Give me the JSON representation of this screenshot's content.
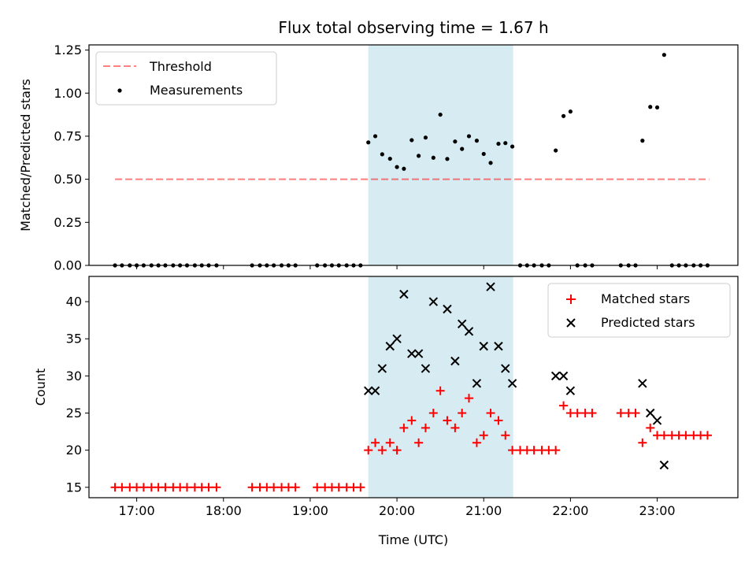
{
  "chart_data": [
    {
      "type": "scatter",
      "title": "Flux total observing time = 1.67 h",
      "ylabel": "Matched/Predicted stars",
      "ylim": [
        0,
        1.28
      ],
      "xlim_hours": [
        16.45,
        23.93
      ],
      "yticks": [
        "0.00",
        "0.25",
        "0.50",
        "0.75",
        "1.00",
        "1.25"
      ],
      "ytick_values": [
        0,
        0.25,
        0.5,
        0.75,
        1.0,
        1.25
      ],
      "highlight_span_hours": [
        19.67,
        21.34
      ],
      "highlight_color": "#add8e6",
      "legend": {
        "placement": "upper left",
        "threshold_label": "Threshold",
        "measurements_label": "Measurements"
      },
      "threshold": {
        "value": 0.5,
        "x_range_hours": [
          16.75,
          23.6
        ],
        "color": "#ff0000"
      },
      "series": [
        {
          "name": "Measurements",
          "color": "#000000",
          "x_hours": [
            16.75,
            16.83,
            16.92,
            17.0,
            17.08,
            17.17,
            17.25,
            17.33,
            17.42,
            17.5,
            17.58,
            17.67,
            17.75,
            17.83,
            17.92,
            18.33,
            18.42,
            18.5,
            18.58,
            18.67,
            18.75,
            18.83,
            19.08,
            19.17,
            19.25,
            19.33,
            19.42,
            19.5,
            19.58,
            19.67,
            19.75,
            19.83,
            19.92,
            20.0,
            20.08,
            20.17,
            20.25,
            20.33,
            20.42,
            20.5,
            20.58,
            20.67,
            20.75,
            20.83,
            20.92,
            21.0,
            21.08,
            21.17,
            21.25,
            21.33,
            21.42,
            21.5,
            21.58,
            21.67,
            21.75,
            21.83,
            21.92,
            22.0,
            22.08,
            22.17,
            22.25,
            22.58,
            22.67,
            22.75,
            22.83,
            22.92,
            23.0,
            23.08,
            23.17,
            23.25,
            23.33,
            23.42,
            23.5,
            23.58
          ],
          "y": [
            0,
            0,
            0,
            0,
            0,
            0,
            0,
            0,
            0,
            0,
            0,
            0,
            0,
            0,
            0,
            0,
            0,
            0,
            0,
            0,
            0,
            0,
            0,
            0,
            0,
            0,
            0,
            0,
            0,
            0.714,
            0.75,
            0.645,
            0.619,
            0.571,
            0.561,
            0.727,
            0.636,
            0.742,
            0.625,
            0.875,
            0.618,
            0.719,
            0.676,
            0.75,
            0.724,
            0.647,
            0.595,
            0.706,
            0.71,
            0.69,
            0,
            0,
            0,
            0,
            0,
            0.667,
            0.867,
            0.893,
            0,
            0,
            0,
            0,
            0,
            0,
            0.724,
            0.92,
            0.917,
            1.222,
            0,
            0,
            0,
            0,
            0,
            0
          ]
        }
      ]
    },
    {
      "type": "scatter",
      "xlabel": "Time (UTC)",
      "ylabel": "Count",
      "ylim": [
        13.6,
        43.4
      ],
      "xlim_hours": [
        16.45,
        23.93
      ],
      "xticks": [
        "17:00",
        "18:00",
        "19:00",
        "20:00",
        "21:00",
        "22:00",
        "23:00"
      ],
      "xtick_hours": [
        17,
        18,
        19,
        20,
        21,
        22,
        23
      ],
      "yticks": [
        "15",
        "20",
        "25",
        "30",
        "35",
        "40"
      ],
      "ytick_values": [
        15,
        20,
        25,
        30,
        35,
        40
      ],
      "highlight_span_hours": [
        19.67,
        21.34
      ],
      "highlight_color": "#add8e6",
      "legend": {
        "placement": "upper right"
      },
      "series": [
        {
          "name": "Matched stars",
          "marker": "plus",
          "color": "#ff0000",
          "x_hours": [
            16.75,
            16.83,
            16.92,
            17.0,
            17.08,
            17.17,
            17.25,
            17.33,
            17.42,
            17.5,
            17.58,
            17.67,
            17.75,
            17.83,
            17.92,
            18.33,
            18.42,
            18.5,
            18.58,
            18.67,
            18.75,
            18.83,
            19.08,
            19.17,
            19.25,
            19.33,
            19.42,
            19.5,
            19.58,
            19.67,
            19.75,
            19.83,
            19.92,
            20.0,
            20.08,
            20.17,
            20.25,
            20.33,
            20.42,
            20.5,
            20.58,
            20.67,
            20.75,
            20.83,
            20.92,
            21.0,
            21.08,
            21.17,
            21.25,
            21.33,
            21.42,
            21.5,
            21.58,
            21.67,
            21.75,
            21.83,
            21.92,
            22.0,
            22.08,
            22.17,
            22.25,
            22.58,
            22.67,
            22.75,
            22.83,
            22.92,
            23.0,
            23.08,
            23.17,
            23.25,
            23.33,
            23.42,
            23.5,
            23.58
          ],
          "y": [
            15,
            15,
            15,
            15,
            15,
            15,
            15,
            15,
            15,
            15,
            15,
            15,
            15,
            15,
            15,
            15,
            15,
            15,
            15,
            15,
            15,
            15,
            15,
            15,
            15,
            15,
            15,
            15,
            15,
            20,
            21,
            20,
            21,
            20,
            23,
            24,
            21,
            23,
            25,
            28,
            24,
            23,
            25,
            27,
            21,
            22,
            25,
            24,
            22,
            20,
            20,
            20,
            20,
            20,
            20,
            20,
            26,
            25,
            25,
            25,
            25,
            25,
            25,
            25,
            21,
            23,
            22,
            22,
            22,
            22,
            22,
            22,
            22,
            22
          ]
        },
        {
          "name": "Predicted stars",
          "marker": "x",
          "color": "#000000",
          "x_hours": [
            19.67,
            19.75,
            19.83,
            19.92,
            20.0,
            20.08,
            20.17,
            20.25,
            20.33,
            20.42,
            20.58,
            20.67,
            20.75,
            20.83,
            20.92,
            21.0,
            21.08,
            21.17,
            21.25,
            21.33,
            21.83,
            21.92,
            22.0,
            22.83,
            22.92,
            23.0,
            23.08
          ],
          "y": [
            28,
            28,
            31,
            34,
            35,
            41,
            33,
            33,
            31,
            40,
            39,
            32,
            37,
            36,
            29,
            34,
            42,
            34,
            31,
            29,
            30,
            30,
            28,
            29,
            25,
            24,
            18
          ]
        }
      ]
    }
  ]
}
